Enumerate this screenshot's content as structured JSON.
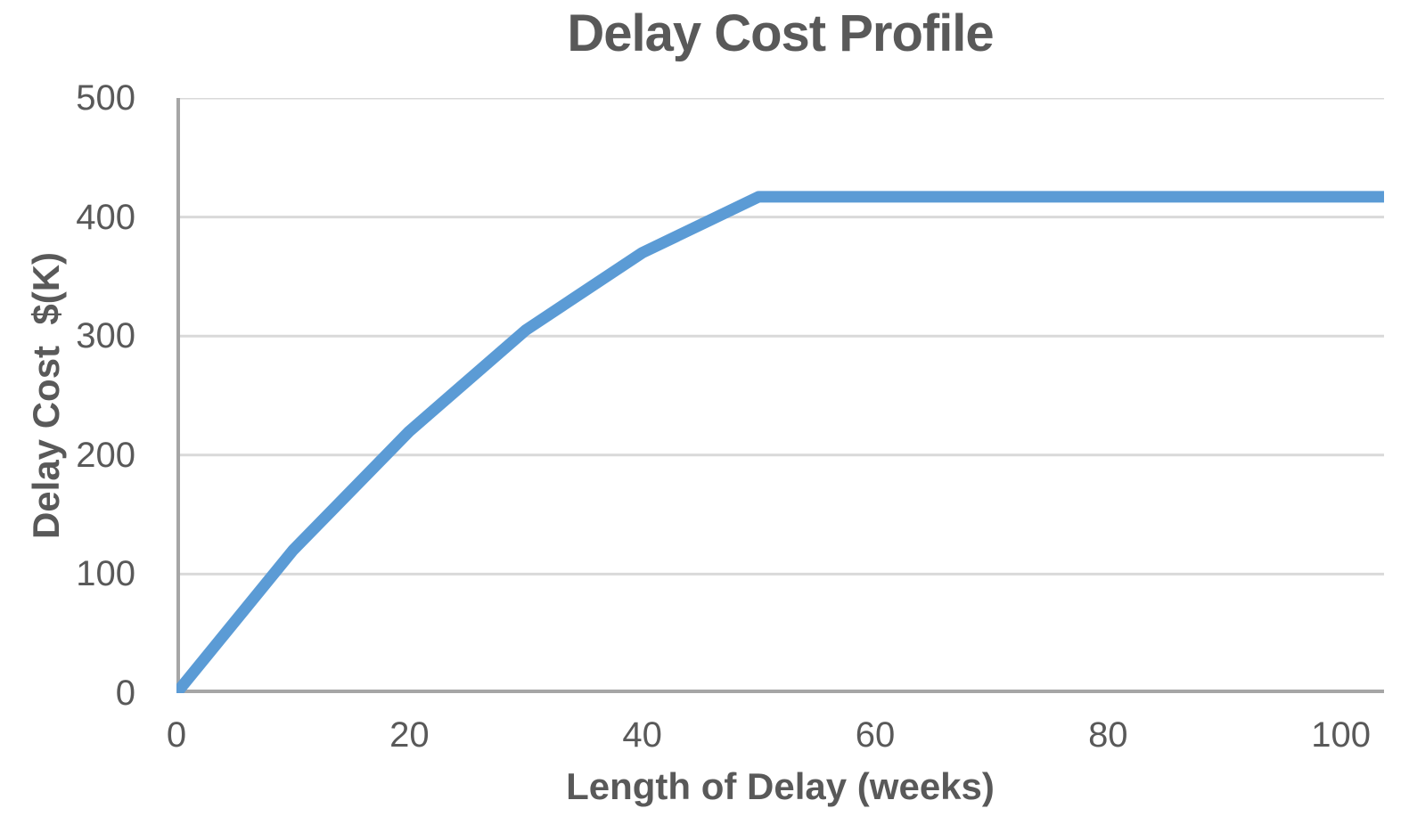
{
  "chart_data": {
    "type": "line",
    "title": "Delay Cost Profile",
    "xlabel": "Length of Delay (weeks)",
    "ylabel": "Delay Cost  $(K)",
    "x": [
      0,
      10,
      20,
      30,
      40,
      50,
      104
    ],
    "y": [
      0,
      120,
      220,
      305,
      370,
      417,
      417
    ],
    "xticks": [
      0,
      20,
      40,
      60,
      80,
      100
    ],
    "yticks": [
      0,
      100,
      200,
      300,
      400,
      500
    ],
    "xlim": [
      0,
      103.7
    ],
    "ylim": [
      0,
      500
    ],
    "grid": "horizontal-only",
    "legend": "none",
    "markers": "none",
    "colors": {
      "line": "#5B9BD5",
      "gridline": "#D9D9D9",
      "axis_line": "#A6A6A6",
      "text": "#595959",
      "background": "#FFFFFF"
    }
  }
}
